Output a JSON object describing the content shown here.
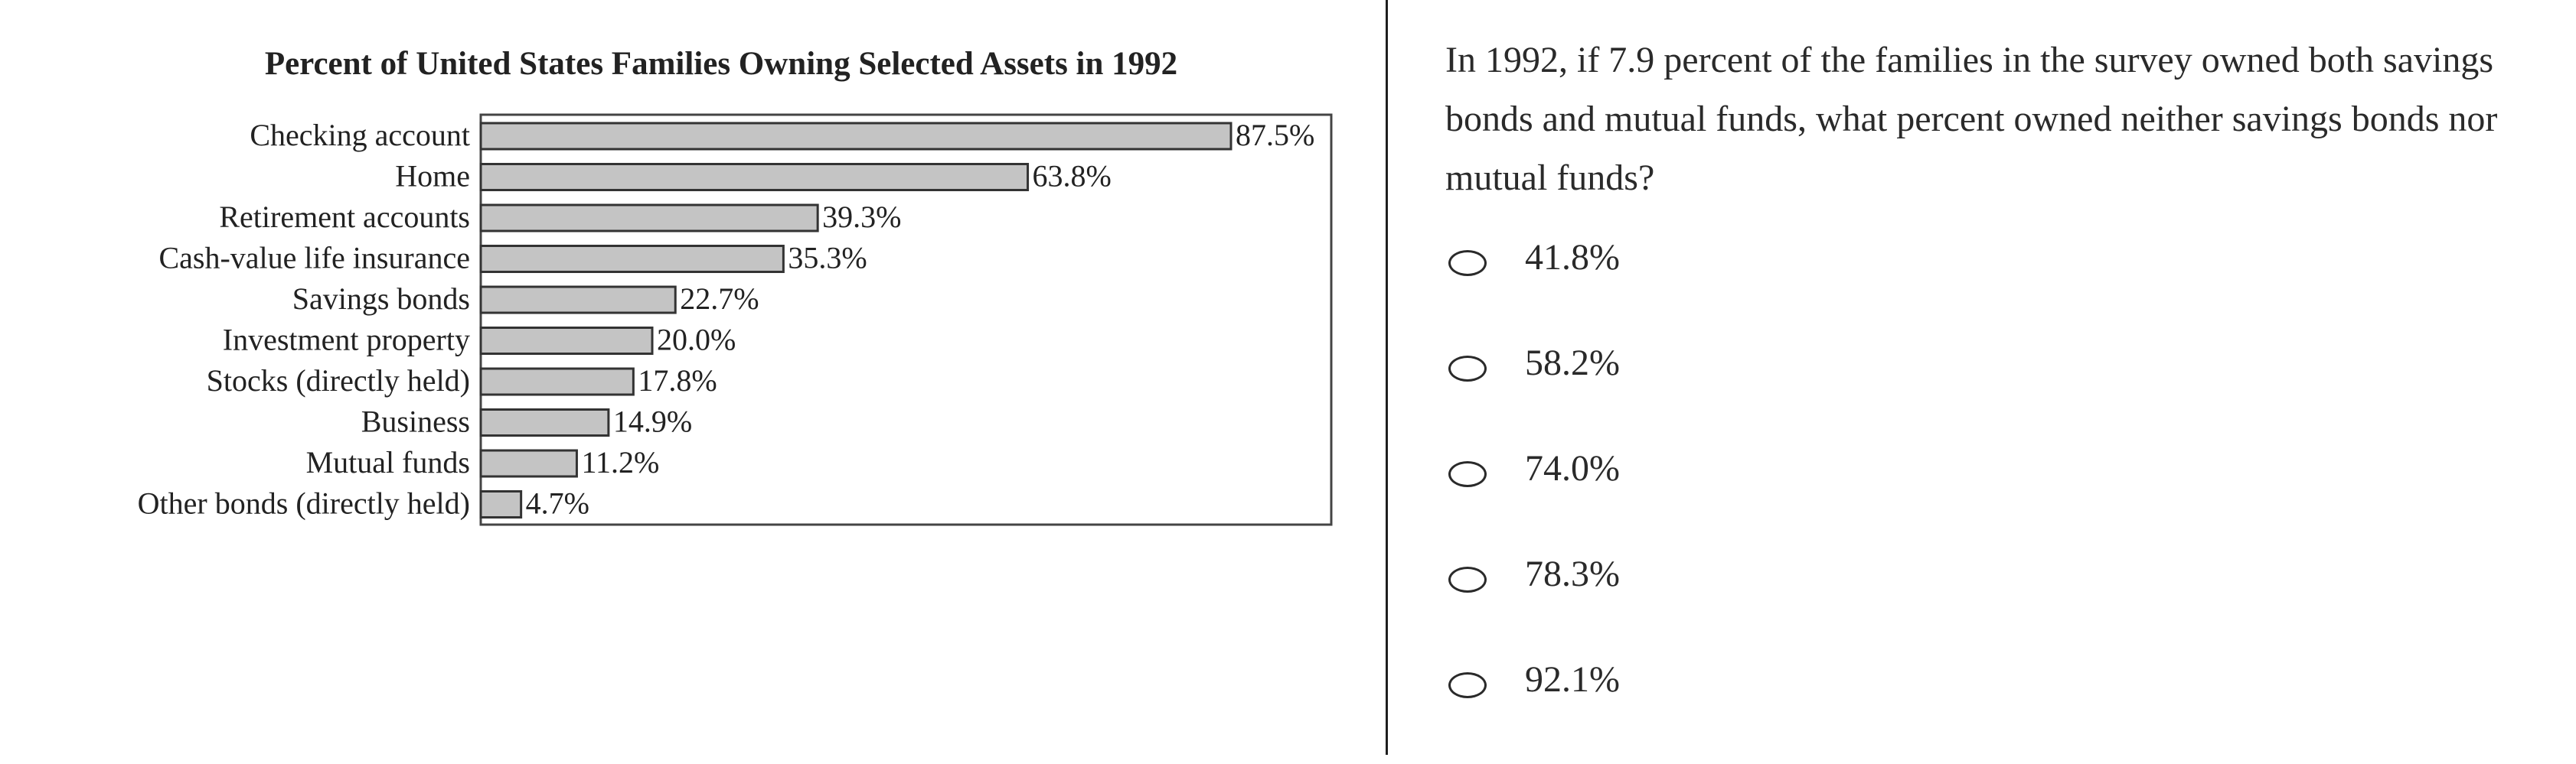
{
  "question": {
    "text": "In 1992, if 7.9 percent of the families in the survey owned both savings bonds and mutual funds, what percent owned neither savings bonds nor mutual funds?"
  },
  "choices": [
    {
      "label": "41.8%"
    },
    {
      "label": "58.2%"
    },
    {
      "label": "74.0%"
    },
    {
      "label": "78.3%"
    },
    {
      "label": "92.1%"
    }
  ],
  "colors": {
    "bar_fill": "#c4c4c4",
    "bar_stroke": "#333333",
    "text": "#222222",
    "divider": "#1e1e1e"
  },
  "chart_data": {
    "type": "bar",
    "orientation": "horizontal",
    "title": "Percent of United States Families Owning Selected Assets in 1992",
    "xlabel": "",
    "ylabel": "",
    "xlim": [
      0,
      100
    ],
    "grid": false,
    "categories": [
      "Checking account",
      "Home",
      "Retirement accounts",
      "Cash-value life insurance",
      "Savings bonds",
      "Investment property",
      "Stocks (directly held)",
      "Business",
      "Mutual funds",
      "Other bonds (directly held)"
    ],
    "values": [
      87.5,
      63.8,
      39.3,
      35.3,
      22.7,
      20.0,
      17.8,
      14.9,
      11.2,
      4.7
    ],
    "value_labels": [
      "87.5%",
      "63.8%",
      "39.3%",
      "35.3%",
      "22.7%",
      "20.0%",
      "17.8%",
      "14.9%",
      "11.2%",
      "4.7%"
    ]
  }
}
